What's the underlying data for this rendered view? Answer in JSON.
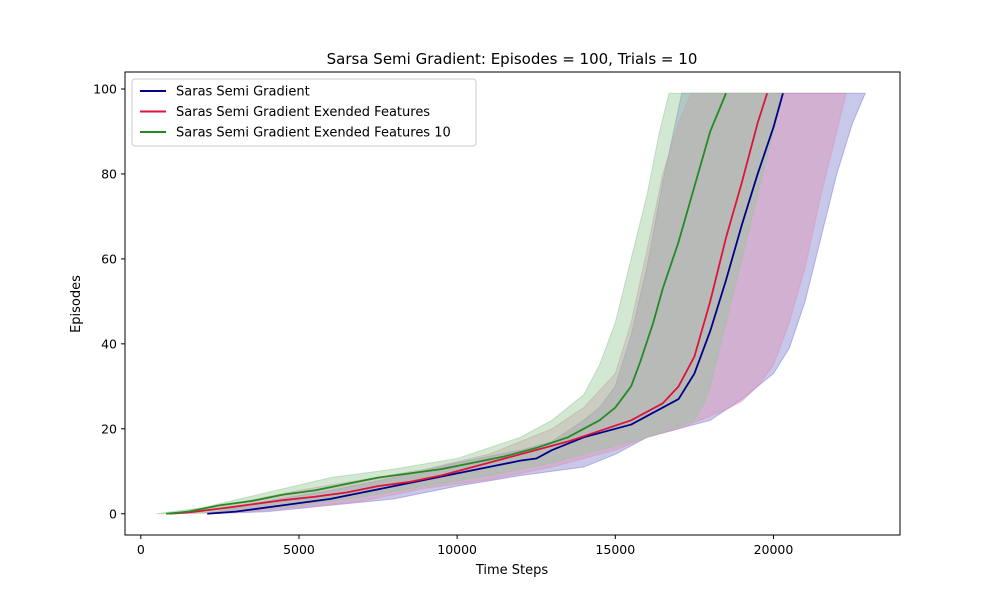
{
  "chart_data": {
    "type": "line",
    "title": "Sarsa Semi Gradient: Episodes = 100, Trials = 10",
    "xlabel": "Time Steps",
    "ylabel": "Episodes",
    "xlim": [
      -500,
      24000
    ],
    "ylim": [
      -5,
      104
    ],
    "xticks": [
      0,
      5000,
      10000,
      15000,
      20000
    ],
    "xtick_labels": [
      "0",
      "5000",
      "10000",
      "15000",
      "20000"
    ],
    "yticks": [
      0,
      20,
      40,
      60,
      80,
      100
    ],
    "ytick_labels": [
      "0",
      "20",
      "40",
      "60",
      "80",
      "100"
    ],
    "grid": false,
    "legend_position": "upper-left",
    "series": [
      {
        "name": "Saras Semi Gradient",
        "color": "#00008b",
        "band_color": "#7b7bd0",
        "x": [
          2100,
          3000,
          4000,
          5000,
          6000,
          7000,
          8000,
          9000,
          10000,
          11000,
          12000,
          12500,
          13000,
          14000,
          15000,
          15500,
          16000,
          16500,
          17000,
          17500,
          17800,
          18000,
          18500,
          19000,
          19500,
          20000,
          20300
        ],
        "y": [
          0,
          0.5,
          1.5,
          2.5,
          3.5,
          5,
          6.5,
          8,
          9.5,
          11,
          12.5,
          13,
          15,
          18,
          20,
          21,
          23,
          25,
          27,
          33,
          39,
          43,
          55,
          68,
          80,
          91,
          99
        ],
        "lower": [
          [
            2100,
            0
          ],
          [
            4000,
            0.5
          ],
          [
            6000,
            2
          ],
          [
            8000,
            3.5
          ],
          [
            10000,
            6.5
          ],
          [
            12000,
            9
          ],
          [
            14000,
            11
          ],
          [
            15000,
            14
          ],
          [
            16000,
            18
          ],
          [
            17000,
            20
          ],
          [
            18000,
            22
          ],
          [
            19000,
            27
          ],
          [
            19500,
            30
          ],
          [
            20000,
            33
          ],
          [
            20500,
            39
          ],
          [
            21000,
            50
          ],
          [
            21500,
            65
          ],
          [
            22000,
            80
          ],
          [
            22500,
            92
          ],
          [
            22900,
            99
          ]
        ],
        "upper": [
          [
            2100,
            0
          ],
          [
            4000,
            3
          ],
          [
            6000,
            5.5
          ],
          [
            8000,
            8.5
          ],
          [
            10000,
            12
          ],
          [
            12000,
            15
          ],
          [
            13000,
            17
          ],
          [
            14000,
            22
          ],
          [
            14500,
            25
          ],
          [
            15000,
            30
          ],
          [
            15500,
            42
          ],
          [
            16000,
            58
          ],
          [
            16500,
            78
          ],
          [
            16900,
            92
          ],
          [
            17100,
            99
          ]
        ]
      },
      {
        "name": "Saras Semi Gradient Exended Features",
        "color": "#dc143c",
        "band_color": "#e090b0",
        "x": [
          900,
          1500,
          2500,
          3500,
          4500,
          5500,
          6500,
          7500,
          8500,
          9500,
          10500,
          11500,
          12500,
          13500,
          14500,
          15500,
          16000,
          16500,
          17000,
          17500,
          18000,
          18500,
          19000,
          19500,
          19800
        ],
        "y": [
          0,
          0.3,
          1.2,
          2.2,
          3.2,
          4,
          5,
          6.5,
          7.5,
          9,
          11,
          13,
          15,
          17,
          19.5,
          22,
          24,
          26,
          30,
          37,
          50,
          65,
          78,
          92,
          99
        ],
        "lower": [
          [
            900,
            0
          ],
          [
            3000,
            0.3
          ],
          [
            5000,
            1.5
          ],
          [
            7000,
            3
          ],
          [
            9000,
            6
          ],
          [
            11000,
            8
          ],
          [
            13000,
            11
          ],
          [
            15000,
            15
          ],
          [
            16000,
            18
          ],
          [
            17000,
            20
          ],
          [
            18000,
            23
          ],
          [
            18500,
            24.5
          ],
          [
            19000,
            26.5
          ],
          [
            19500,
            30
          ],
          [
            20000,
            35
          ],
          [
            20500,
            45
          ],
          [
            21000,
            58
          ],
          [
            21500,
            75
          ],
          [
            22000,
            90
          ],
          [
            22300,
            99
          ]
        ],
        "upper": [
          [
            900,
            0
          ],
          [
            3000,
            2.5
          ],
          [
            5000,
            5.5
          ],
          [
            7000,
            8
          ],
          [
            9000,
            10.5
          ],
          [
            11000,
            14
          ],
          [
            13000,
            20
          ],
          [
            14000,
            25
          ],
          [
            15000,
            33
          ],
          [
            15500,
            45
          ],
          [
            16000,
            62
          ],
          [
            16500,
            80
          ],
          [
            17000,
            92
          ],
          [
            17400,
            99
          ]
        ]
      },
      {
        "name": "Saras Semi Gradient Exended Features 10",
        "color": "#228b22",
        "band_color": "#94c894",
        "x": [
          800,
          1500,
          2500,
          3500,
          4500,
          5500,
          6500,
          7500,
          8500,
          9500,
          10500,
          11500,
          12500,
          13500,
          14500,
          15000,
          15500,
          15800,
          16200,
          16500,
          17000,
          17500,
          18000,
          18500
        ],
        "y": [
          0,
          0.5,
          2,
          3,
          4.5,
          5.5,
          7,
          8.5,
          9.5,
          10.5,
          12,
          13.5,
          15.5,
          18,
          22,
          25,
          30,
          36,
          45,
          53,
          64,
          77,
          90,
          99
        ],
        "lower": [
          [
            800,
            0
          ],
          [
            3000,
            0.5
          ],
          [
            5000,
            2
          ],
          [
            7000,
            4
          ],
          [
            9000,
            6.5
          ],
          [
            11000,
            9
          ],
          [
            13000,
            12
          ],
          [
            14000,
            14
          ],
          [
            15000,
            16
          ],
          [
            16000,
            18
          ],
          [
            17000,
            20.5
          ],
          [
            17500,
            22
          ],
          [
            17800,
            26
          ],
          [
            18000,
            30
          ],
          [
            18500,
            45
          ],
          [
            19000,
            60
          ],
          [
            19500,
            75
          ],
          [
            20000,
            90
          ],
          [
            20300,
            99
          ]
        ],
        "upper": [
          [
            500,
            0
          ],
          [
            2000,
            1.5
          ],
          [
            4000,
            5
          ],
          [
            6000,
            8.5
          ],
          [
            8000,
            10.5
          ],
          [
            10000,
            13
          ],
          [
            12000,
            18
          ],
          [
            13000,
            22
          ],
          [
            14000,
            28
          ],
          [
            14500,
            35
          ],
          [
            15000,
            45
          ],
          [
            15500,
            60
          ],
          [
            16000,
            75
          ],
          [
            16400,
            90
          ],
          [
            16700,
            99
          ]
        ]
      }
    ]
  }
}
